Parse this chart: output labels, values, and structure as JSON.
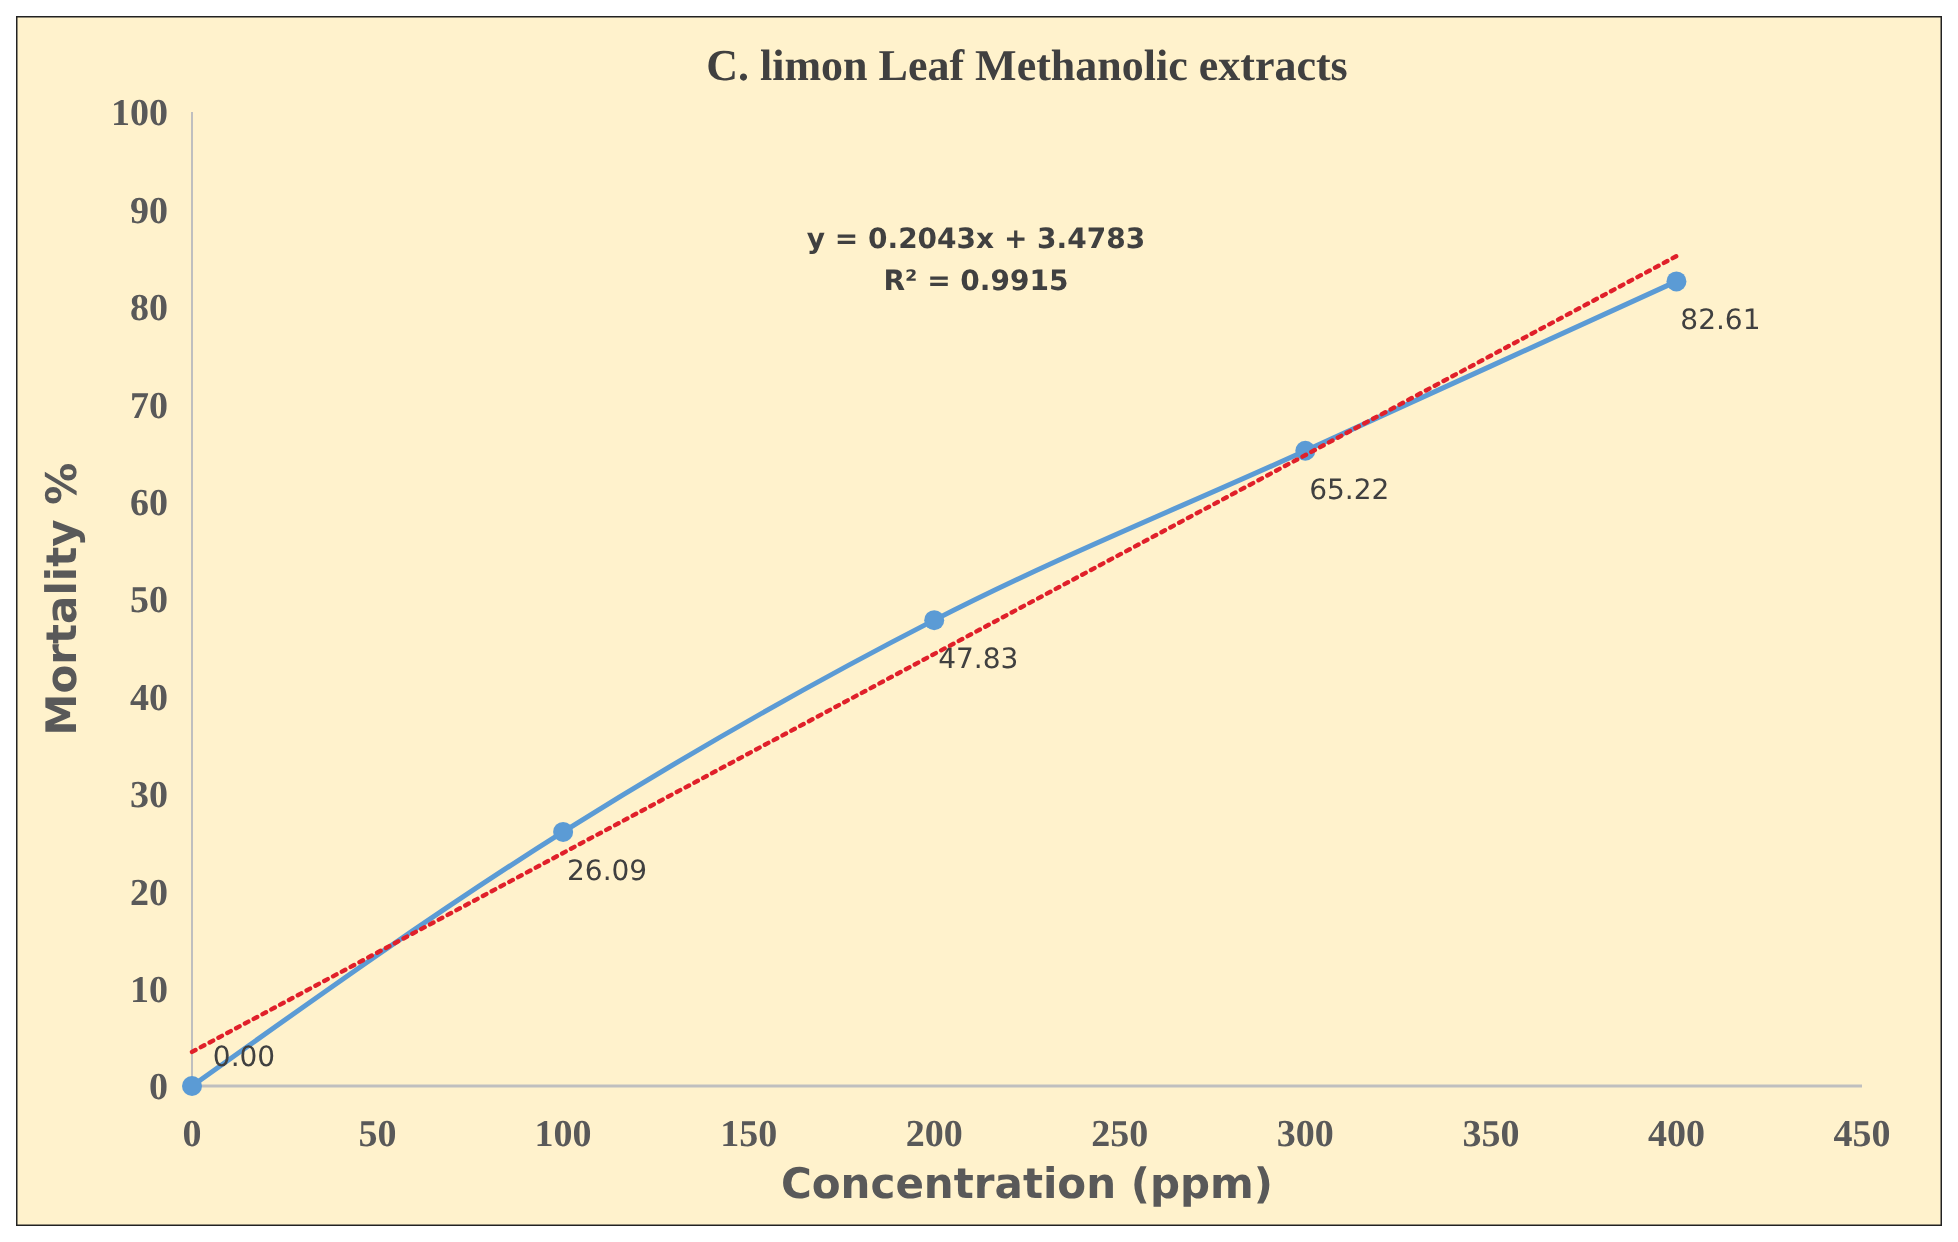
{
  "chart_data": {
    "type": "line",
    "title": "C. limon Leaf Methanolic extracts",
    "xlabel": "Concentration (ppm)",
    "ylabel": "Mortality %",
    "x": [
      0,
      100,
      200,
      300,
      400
    ],
    "series": [
      {
        "color": "#5b9bd5",
        "values": [
          0,
          26.09,
          47.83,
          65.22,
          82.61
        ],
        "value_labels": [
          "0.00",
          "26.09",
          "47.83",
          "65.22",
          "82.61"
        ],
        "marker": "circle",
        "line_style": "solid"
      },
      {
        "type": "line",
        "x": [
          0,
          400
        ],
        "values": [
          3.5,
          85.2
        ],
        "color": "#e0202a",
        "line_style": "dotted",
        "marker": "none"
      }
    ],
    "xlim": [
      0,
      450
    ],
    "xticks": [
      0,
      50,
      100,
      150,
      200,
      250,
      300,
      350,
      400,
      450
    ],
    "ylim": [
      0,
      100
    ],
    "yticks": [
      0,
      10,
      20,
      30,
      40,
      50,
      60,
      70,
      80,
      90,
      100
    ],
    "annotations": [
      "y = 0.2043x + 3.4783",
      "R² = 0.9915"
    ]
  }
}
